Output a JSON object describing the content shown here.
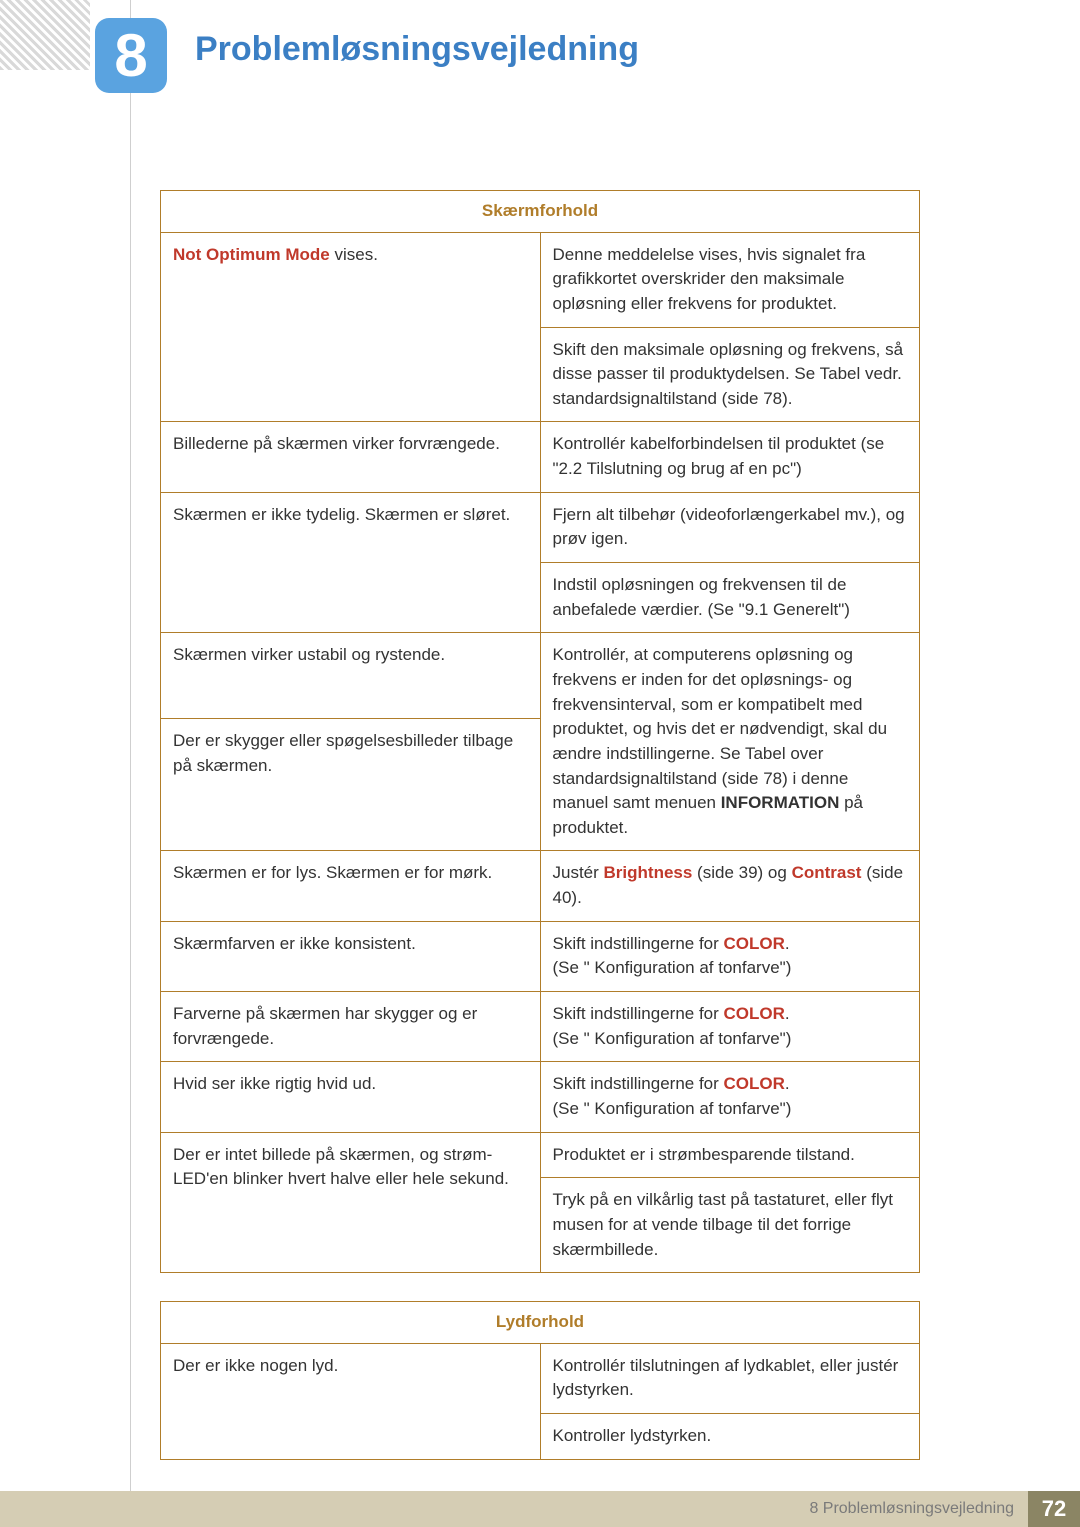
{
  "colors": {
    "badge_bg": "#5aa3e0",
    "title": "#3b7fc4",
    "table_border": "#b07d2a",
    "header_text": "#b07d2a",
    "accent": "#c0392b",
    "body_text": "#333333",
    "footer_bg": "#d5cdb4",
    "footer_pg_bg": "#8b8564"
  },
  "chapter": {
    "number": "8",
    "title": "Problemløsningsvejledning"
  },
  "table1": {
    "header": "Skærmforhold",
    "rows": [
      {
        "left_html": "<span class='bold' style='color:#c0392b'>Not Optimum Mode</span> vises.",
        "left_rowspan": 2,
        "right": "Denne meddelelse vises, hvis signalet fra grafikkortet overskrider den maksimale opløsning eller frekvens for produktet."
      },
      {
        "right": "Skift den maksimale opløsning og frekvens, så disse passer til produktydelsen. Se Tabel vedr. standardsignaltilstand (side 78)."
      },
      {
        "left": "Billederne på skærmen virker forvrængede.",
        "right": "Kontrollér kabelforbindelsen til produktet (se \"2.2 Tilslutning og brug af en pc\")"
      },
      {
        "left": "Skærmen er ikke tydelig. Skærmen er sløret.",
        "left_rowspan": 2,
        "right": "Fjern alt tilbehør (videoforlængerkabel mv.), og prøv igen."
      },
      {
        "right": "Indstil opløsningen og frekvensen til de anbefalede værdier. (Se \"9.1 Generelt\")"
      },
      {
        "left": "Skærmen virker ustabil og rystende.",
        "right_rowspan": 2,
        "right_html": "Kontrollér, at computerens opløsning og frekvens er inden for det opløsnings- og frekvensinterval, som er kompatibelt med produktet, og hvis det er nødvendigt, skal du ændre indstillingerne. Se Tabel over standardsignaltilstand (side 78) i denne manuel samt menuen <span class='bold'>INFORMATION</span> på produktet."
      },
      {
        "left": "Der er skygger eller spøgelsesbilleder tilbage på skærmen."
      },
      {
        "left": "Skærmen er for lys. Skærmen er for mørk.",
        "right_html": "Justér <span class='bold' style='color:#c0392b'>Brightness</span> (side 39) og <span class='bold' style='color:#c0392b'>Contrast</span> (side 40)."
      },
      {
        "left": "Skærmfarven er ikke konsistent.",
        "right_html": "Skift indstillingerne for <span class='bold' style='color:#c0392b'>COLOR</span>.<br>(Se \" Konfiguration af tonfarve\")"
      },
      {
        "left": "Farverne på skærmen har skygger og er forvrængede.",
        "right_html": "Skift indstillingerne for <span class='bold' style='color:#c0392b'>COLOR</span>.<br>(Se \" Konfiguration af tonfarve\")"
      },
      {
        "left": "Hvid ser ikke rigtig hvid ud.",
        "right_html": "Skift indstillingerne for <span class='bold' style='color:#c0392b'>COLOR</span>.<br>(Se \" Konfiguration af tonfarve\")"
      },
      {
        "left": "Der er intet billede på skærmen, og strøm-LED'en blinker hvert halve eller hele sekund.",
        "left_rowspan": 2,
        "right": "Produktet er i strømbesparende tilstand."
      },
      {
        "right": "Tryk på en vilkårlig tast på tastaturet, eller flyt musen for at vende tilbage til det forrige skærmbillede."
      }
    ]
  },
  "table2": {
    "header": "Lydforhold",
    "rows": [
      {
        "left": "Der er ikke nogen lyd.",
        "left_rowspan": 2,
        "right": "Kontrollér tilslutningen af lydkablet, eller justér lydstyrken."
      },
      {
        "right": "Kontroller lydstyrken."
      }
    ]
  },
  "footer": {
    "text": "8 Problemløsningsvejledning",
    "page": "72"
  }
}
